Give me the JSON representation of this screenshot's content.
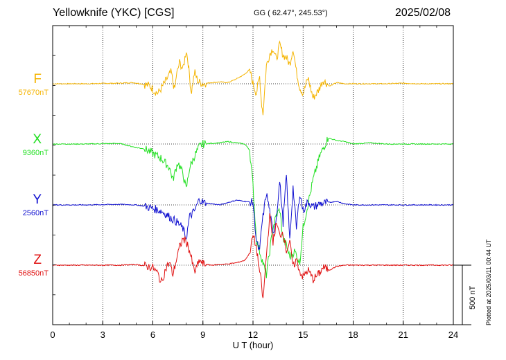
{
  "header": {
    "station": "Yellowknife (YKC)  [CGS]",
    "coords": "GG ( 62.47°, 245.53°)",
    "date": "2025/02/08"
  },
  "scale_bar_label": "500 nT",
  "plotted_note": "Plotted at 2025/03/11 00:44 UT",
  "colors": {
    "F": "#f5b400",
    "X": "#22e022",
    "Y": "#1010d0",
    "Z": "#e01010"
  },
  "chart_data": {
    "type": "line",
    "title": "Yellowknife (YKC)  [CGS]",
    "xlabel": "U T (hour)",
    "xlim": [
      0,
      24
    ],
    "xticks": [
      0,
      3,
      6,
      9,
      12,
      15,
      18,
      21,
      24
    ],
    "grid": true,
    "scale_nT": 500,
    "series": [
      {
        "name": "F",
        "baseline": "57670nT",
        "color": "#f5b400",
        "x": [
          0,
          2,
          4,
          4.8,
          5.3,
          5.8,
          6.1,
          6.3,
          6.5,
          6.8,
          7.1,
          7.3,
          7.4,
          7.6,
          7.8,
          8.0,
          8.1,
          8.3,
          8.5,
          8.7,
          9.0,
          9.5,
          10,
          10.5,
          11,
          11.5,
          11.8,
          12.0,
          12.2,
          12.4,
          12.5,
          12.6,
          12.8,
          13.0,
          13.2,
          13.4,
          13.6,
          13.8,
          14.0,
          14.2,
          14.4,
          14.6,
          14.8,
          15.0,
          15.3,
          15.6,
          15.9,
          16.2,
          16.6,
          17,
          17.5,
          18,
          19,
          20,
          21,
          22,
          23,
          24
        ],
        "y": [
          0,
          0,
          5,
          10,
          0,
          -15,
          -60,
          -80,
          -40,
          30,
          100,
          -60,
          60,
          180,
          120,
          280,
          200,
          -80,
          100,
          20,
          0,
          10,
          15,
          10,
          40,
          80,
          120,
          0,
          -80,
          60,
          -150,
          -250,
          150,
          250,
          300,
          200,
          330,
          240,
          220,
          160,
          300,
          100,
          -30,
          -80,
          50,
          -120,
          -60,
          30,
          -20,
          10,
          0,
          0,
          0,
          0,
          5,
          0,
          0,
          0
        ]
      },
      {
        "name": "X",
        "baseline": "9360nT",
        "color": "#22e022",
        "x": [
          0,
          2,
          4,
          5.0,
          5.5,
          6.0,
          6.5,
          7.0,
          7.2,
          7.5,
          7.8,
          8.0,
          8.2,
          8.5,
          8.8,
          9.0,
          9.5,
          10,
          10.5,
          11,
          11.5,
          11.8,
          12.0,
          12.2,
          12.4,
          12.6,
          12.8,
          13.0,
          13.2,
          13.4,
          13.6,
          13.8,
          14.0,
          14.2,
          14.5,
          14.8,
          15.0,
          15.3,
          15.6,
          16.0,
          16.5,
          17,
          17.5,
          18,
          19,
          20,
          21,
          22,
          23,
          24
        ],
        "y": [
          0,
          0,
          5,
          -30,
          -40,
          -80,
          -120,
          -200,
          -300,
          -150,
          -250,
          -380,
          -200,
          -100,
          -20,
          0,
          5,
          10,
          20,
          10,
          0,
          -50,
          -350,
          -800,
          -900,
          -1000,
          -1100,
          -900,
          -700,
          -600,
          -550,
          -800,
          -850,
          -950,
          -900,
          -1000,
          -700,
          -500,
          -300,
          -100,
          50,
          30,
          20,
          0,
          10,
          0,
          0,
          0,
          0,
          0
        ]
      },
      {
        "name": "Y",
        "baseline": "2560nT",
        "color": "#1010d0",
        "x": [
          0,
          2,
          4,
          5.0,
          5.5,
          6.0,
          6.5,
          7.0,
          7.5,
          7.8,
          8.0,
          8.2,
          8.5,
          8.8,
          9.0,
          9.5,
          10,
          10.5,
          11,
          11.5,
          12.0,
          12.2,
          12.4,
          12.5,
          12.6,
          12.8,
          13.0,
          13.2,
          13.4,
          13.6,
          13.8,
          14.0,
          14.2,
          14.4,
          14.6,
          14.8,
          15.0,
          15.3,
          15.6,
          16.0,
          16.5,
          17,
          17.5,
          18,
          19,
          20,
          21,
          22,
          23,
          24
        ],
        "y": [
          0,
          0,
          5,
          0,
          -10,
          -30,
          -50,
          -100,
          -150,
          -200,
          -280,
          -100,
          -50,
          50,
          20,
          10,
          0,
          20,
          40,
          30,
          20,
          -300,
          -400,
          -200,
          -100,
          100,
          -50,
          -250,
          -100,
          200,
          -150,
          250,
          -300,
          150,
          -200,
          100,
          -50,
          30,
          -20,
          10,
          20,
          30,
          10,
          0,
          0,
          0,
          0,
          0,
          0,
          0
        ]
      },
      {
        "name": "Z",
        "baseline": "56850nT",
        "color": "#e01010",
        "x": [
          0,
          2,
          4,
          5.0,
          5.5,
          6.0,
          6.3,
          6.5,
          6.8,
          7.0,
          7.2,
          7.4,
          7.6,
          7.8,
          8.0,
          8.2,
          8.5,
          8.8,
          9.0,
          9.5,
          10,
          10.5,
          11,
          11.5,
          11.8,
          12.0,
          12.2,
          12.4,
          12.5,
          12.6,
          12.8,
          13.0,
          13.2,
          13.4,
          13.6,
          13.8,
          14.0,
          14.2,
          14.4,
          14.6,
          14.8,
          15.0,
          15.3,
          15.6,
          15.9,
          16.2,
          16.6,
          17,
          17.5,
          18,
          19,
          20,
          21,
          22,
          23,
          24
        ],
        "y": [
          0,
          0,
          0,
          5,
          -5,
          -20,
          -70,
          -150,
          -20,
          20,
          -80,
          40,
          150,
          220,
          200,
          120,
          -60,
          40,
          10,
          0,
          5,
          10,
          20,
          40,
          100,
          250,
          150,
          -60,
          -150,
          -300,
          80,
          420,
          200,
          350,
          250,
          280,
          120,
          200,
          -20,
          50,
          -50,
          -100,
          -40,
          -120,
          -80,
          -20,
          -40,
          -10,
          0,
          0,
          0,
          0,
          0,
          0,
          0,
          0
        ]
      }
    ]
  }
}
